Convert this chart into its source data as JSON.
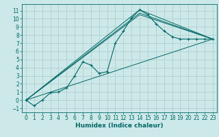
{
  "title": "",
  "xlabel": "Humidex (Indice chaleur)",
  "bg_color": "#cce8e8",
  "grid_color": "#aacccc",
  "line_color": "#006666",
  "xlim": [
    -0.5,
    23.5
  ],
  "ylim": [
    -1.5,
    11.8
  ],
  "yticks": [
    -1,
    0,
    1,
    2,
    3,
    4,
    5,
    6,
    7,
    8,
    9,
    10,
    11
  ],
  "xticks": [
    0,
    1,
    2,
    3,
    4,
    5,
    6,
    7,
    8,
    9,
    10,
    11,
    12,
    13,
    14,
    15,
    16,
    17,
    18,
    19,
    20,
    21,
    22,
    23
  ],
  "line1_x": [
    0,
    1,
    2,
    3,
    4,
    5,
    6,
    7,
    8,
    9,
    10,
    11,
    12,
    13,
    14,
    15,
    16,
    17,
    18,
    19,
    20,
    21,
    22,
    23
  ],
  "line1_y": [
    0,
    -0.7,
    0,
    0.9,
    1.0,
    1.5,
    3.0,
    4.7,
    4.3,
    3.3,
    3.5,
    7.0,
    8.5,
    10.1,
    11.1,
    10.5,
    9.4,
    8.5,
    7.8,
    7.5,
    7.5,
    7.5,
    7.5,
    7.5
  ],
  "line2_x": [
    0,
    23
  ],
  "line2_y": [
    0,
    7.5
  ],
  "line3_x": [
    0,
    14,
    23
  ],
  "line3_y": [
    0,
    11.1,
    7.5
  ],
  "line4_x": [
    0,
    14,
    23
  ],
  "line4_y": [
    0,
    10.5,
    7.5
  ],
  "line5_x": [
    0,
    14,
    23
  ],
  "line5_y": [
    0,
    10.7,
    7.5
  ],
  "xlabel_fontsize": 6.5,
  "tick_fontsize": 5.5
}
